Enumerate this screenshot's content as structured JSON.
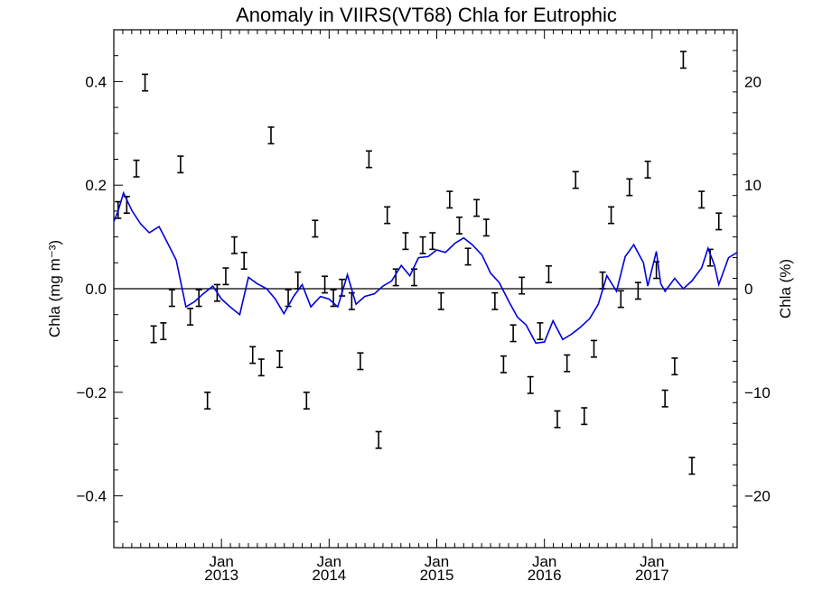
{
  "chart_data": {
    "type": "line",
    "title": "Anomaly in VIIRS(VT68) Chla for Eutrophic",
    "ylabel": "Chla (mg m⁻³)",
    "y2label": "Chla (%)",
    "ylim": [
      -0.5,
      0.5
    ],
    "y2lim": [
      -25,
      25
    ],
    "xlim": [
      2012.0,
      2017.79
    ],
    "yticks": [
      {
        "value": -0.4,
        "label": "−0.4"
      },
      {
        "value": -0.2,
        "label": "−0.2"
      },
      {
        "value": 0.0,
        "label": "0.0"
      },
      {
        "value": 0.2,
        "label": "0.2"
      },
      {
        "value": 0.4,
        "label": "0.4"
      }
    ],
    "y2ticks": [
      {
        "value": -20,
        "label": "−20"
      },
      {
        "value": -10,
        "label": "−10"
      },
      {
        "value": 0,
        "label": "0"
      },
      {
        "value": 10,
        "label": "10"
      },
      {
        "value": 20,
        "label": "20"
      }
    ],
    "xticks": [
      {
        "value": 2013.0,
        "month": "Jan",
        "year": "2013"
      },
      {
        "value": 2014.0,
        "month": "Jan",
        "year": "2014"
      },
      {
        "value": 2015.0,
        "month": "Jan",
        "year": "2015"
      },
      {
        "value": 2016.0,
        "month": "Jan",
        "year": "2016"
      },
      {
        "value": 2017.0,
        "month": "Jan",
        "year": "2017"
      }
    ],
    "zero_line": 0,
    "series": [
      {
        "style": "errorbar",
        "color": "#000000",
        "axis": "right",
        "unit": "%",
        "points": [
          {
            "x": 2012.04,
            "y": 7.6
          },
          {
            "x": 2012.12,
            "y": 8.1
          },
          {
            "x": 2012.21,
            "y": 11.6
          },
          {
            "x": 2012.29,
            "y": 19.9
          },
          {
            "x": 2012.37,
            "y": -4.4
          },
          {
            "x": 2012.46,
            "y": -4.1
          },
          {
            "x": 2012.54,
            "y": -0.9
          },
          {
            "x": 2012.62,
            "y": 12.0
          },
          {
            "x": 2012.71,
            "y": -2.7
          },
          {
            "x": 2012.79,
            "y": -0.9
          },
          {
            "x": 2012.87,
            "y": -10.8
          },
          {
            "x": 2012.96,
            "y": -0.4
          },
          {
            "x": 2013.04,
            "y": 1.2
          },
          {
            "x": 2013.12,
            "y": 4.2
          },
          {
            "x": 2013.21,
            "y": 2.7
          },
          {
            "x": 2013.29,
            "y": -6.4
          },
          {
            "x": 2013.37,
            "y": -7.6
          },
          {
            "x": 2013.46,
            "y": 14.8
          },
          {
            "x": 2013.54,
            "y": -6.8
          },
          {
            "x": 2013.62,
            "y": -0.9
          },
          {
            "x": 2013.71,
            "y": 0.8
          },
          {
            "x": 2013.79,
            "y": -10.8
          },
          {
            "x": 2013.87,
            "y": 5.8
          },
          {
            "x": 2013.96,
            "y": 0.4
          },
          {
            "x": 2014.04,
            "y": -0.9
          },
          {
            "x": 2014.12,
            "y": 0.1
          },
          {
            "x": 2014.21,
            "y": -1.2
          },
          {
            "x": 2014.29,
            "y": -7.0
          },
          {
            "x": 2014.37,
            "y": 12.5
          },
          {
            "x": 2014.46,
            "y": -14.6
          },
          {
            "x": 2014.54,
            "y": 7.1
          },
          {
            "x": 2014.62,
            "y": 1.1
          },
          {
            "x": 2014.71,
            "y": 4.6
          },
          {
            "x": 2014.79,
            "y": 1.1
          },
          {
            "x": 2014.87,
            "y": 4.2
          },
          {
            "x": 2014.96,
            "y": 4.6
          },
          {
            "x": 2015.04,
            "y": -1.2
          },
          {
            "x": 2015.12,
            "y": 8.6
          },
          {
            "x": 2015.21,
            "y": 6.1
          },
          {
            "x": 2015.29,
            "y": 3.1
          },
          {
            "x": 2015.37,
            "y": 7.8
          },
          {
            "x": 2015.46,
            "y": 5.9
          },
          {
            "x": 2015.54,
            "y": -1.2
          },
          {
            "x": 2015.62,
            "y": -7.3
          },
          {
            "x": 2015.71,
            "y": -4.3
          },
          {
            "x": 2015.79,
            "y": 0.3
          },
          {
            "x": 2015.87,
            "y": -9.3
          },
          {
            "x": 2015.96,
            "y": -4.1
          },
          {
            "x": 2016.04,
            "y": 1.4
          },
          {
            "x": 2016.12,
            "y": -12.6
          },
          {
            "x": 2016.21,
            "y": -7.2
          },
          {
            "x": 2016.29,
            "y": 10.5
          },
          {
            "x": 2016.37,
            "y": -12.3
          },
          {
            "x": 2016.46,
            "y": -5.8
          },
          {
            "x": 2016.54,
            "y": 0.8
          },
          {
            "x": 2016.62,
            "y": 7.1
          },
          {
            "x": 2016.71,
            "y": -1.0
          },
          {
            "x": 2016.79,
            "y": 9.8
          },
          {
            "x": 2016.87,
            "y": -0.2
          },
          {
            "x": 2016.96,
            "y": 11.5
          },
          {
            "x": 2017.04,
            "y": 1.8
          },
          {
            "x": 2017.12,
            "y": -10.6
          },
          {
            "x": 2017.21,
            "y": -7.5
          },
          {
            "x": 2017.29,
            "y": 22.1
          },
          {
            "x": 2017.37,
            "y": -17.1
          },
          {
            "x": 2017.46,
            "y": 8.6
          },
          {
            "x": 2017.54,
            "y": 3.0
          },
          {
            "x": 2017.62,
            "y": 6.5
          }
        ],
        "error": 0.8
      },
      {
        "style": "line",
        "color": "#0000dd",
        "axis": "left",
        "unit": "mg m⁻³",
        "points": [
          {
            "x": 2012.0,
            "y": 0.13
          },
          {
            "x": 2012.04,
            "y": 0.15
          },
          {
            "x": 2012.09,
            "y": 0.185
          },
          {
            "x": 2012.17,
            "y": 0.15
          },
          {
            "x": 2012.25,
            "y": 0.125
          },
          {
            "x": 2012.33,
            "y": 0.108
          },
          {
            "x": 2012.42,
            "y": 0.12
          },
          {
            "x": 2012.5,
            "y": 0.088
          },
          {
            "x": 2012.58,
            "y": 0.055
          },
          {
            "x": 2012.67,
            "y": -0.035
          },
          {
            "x": 2012.75,
            "y": -0.025
          },
          {
            "x": 2012.83,
            "y": -0.01
          },
          {
            "x": 2012.92,
            "y": 0.005
          },
          {
            "x": 2013.0,
            "y": -0.02
          },
          {
            "x": 2013.08,
            "y": -0.035
          },
          {
            "x": 2013.17,
            "y": -0.05
          },
          {
            "x": 2013.25,
            "y": 0.022
          },
          {
            "x": 2013.33,
            "y": 0.01
          },
          {
            "x": 2013.42,
            "y": 0.0
          },
          {
            "x": 2013.5,
            "y": -0.02
          },
          {
            "x": 2013.58,
            "y": -0.048
          },
          {
            "x": 2013.67,
            "y": -0.015
          },
          {
            "x": 2013.75,
            "y": 0.008
          },
          {
            "x": 2013.83,
            "y": -0.035
          },
          {
            "x": 2013.92,
            "y": -0.015
          },
          {
            "x": 2014.0,
            "y": -0.02
          },
          {
            "x": 2014.08,
            "y": -0.035
          },
          {
            "x": 2014.17,
            "y": 0.027
          },
          {
            "x": 2014.25,
            "y": -0.03
          },
          {
            "x": 2014.33,
            "y": -0.015
          },
          {
            "x": 2014.42,
            "y": -0.01
          },
          {
            "x": 2014.5,
            "y": 0.005
          },
          {
            "x": 2014.58,
            "y": 0.015
          },
          {
            "x": 2014.67,
            "y": 0.045
          },
          {
            "x": 2014.75,
            "y": 0.025
          },
          {
            "x": 2014.83,
            "y": 0.06
          },
          {
            "x": 2014.92,
            "y": 0.062
          },
          {
            "x": 2015.0,
            "y": 0.075
          },
          {
            "x": 2015.08,
            "y": 0.07
          },
          {
            "x": 2015.17,
            "y": 0.088
          },
          {
            "x": 2015.25,
            "y": 0.098
          },
          {
            "x": 2015.33,
            "y": 0.085
          },
          {
            "x": 2015.42,
            "y": 0.065
          },
          {
            "x": 2015.5,
            "y": 0.03
          },
          {
            "x": 2015.58,
            "y": 0.012
          },
          {
            "x": 2015.67,
            "y": -0.025
          },
          {
            "x": 2015.75,
            "y": -0.055
          },
          {
            "x": 2015.83,
            "y": -0.07
          },
          {
            "x": 2015.92,
            "y": -0.105
          },
          {
            "x": 2016.0,
            "y": -0.103
          },
          {
            "x": 2016.08,
            "y": -0.062
          },
          {
            "x": 2016.17,
            "y": -0.098
          },
          {
            "x": 2016.25,
            "y": -0.088
          },
          {
            "x": 2016.33,
            "y": -0.075
          },
          {
            "x": 2016.42,
            "y": -0.058
          },
          {
            "x": 2016.5,
            "y": -0.03
          },
          {
            "x": 2016.58,
            "y": 0.025
          },
          {
            "x": 2016.67,
            "y": -0.005
          },
          {
            "x": 2016.75,
            "y": 0.062
          },
          {
            "x": 2016.83,
            "y": 0.085
          },
          {
            "x": 2016.92,
            "y": 0.05
          },
          {
            "x": 2016.96,
            "y": 0.005
          },
          {
            "x": 2017.04,
            "y": 0.072
          },
          {
            "x": 2017.08,
            "y": 0.01
          },
          {
            "x": 2017.12,
            "y": -0.005
          },
          {
            "x": 2017.21,
            "y": 0.02
          },
          {
            "x": 2017.29,
            "y": 0.0
          },
          {
            "x": 2017.37,
            "y": 0.015
          },
          {
            "x": 2017.46,
            "y": 0.04
          },
          {
            "x": 2017.52,
            "y": 0.078
          },
          {
            "x": 2017.58,
            "y": 0.045
          },
          {
            "x": 2017.62,
            "y": 0.008
          },
          {
            "x": 2017.71,
            "y": 0.06
          },
          {
            "x": 2017.79,
            "y": 0.07
          }
        ]
      }
    ],
    "grid": false
  }
}
